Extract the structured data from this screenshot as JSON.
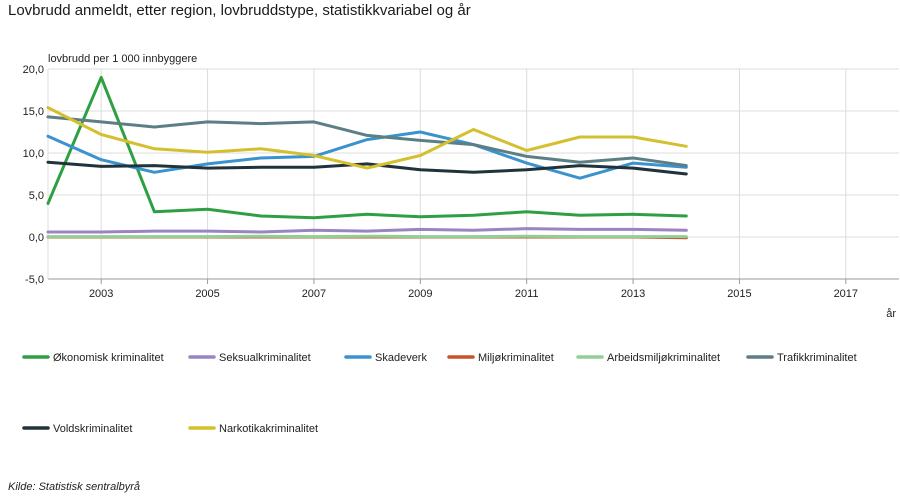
{
  "title": "Lovbrudd anmeldt, etter region, lovbruddstype, statistikkvariabel og år",
  "source": "Kilde:  Statistisk sentralbyrå",
  "chart_data": {
    "type": "line",
    "ylabel": "lovbrudd per 1 000 innbyggere",
    "xlabel": "år",
    "ylim": [
      -5,
      20
    ],
    "yticks": [
      "20,0",
      "15,0",
      "10,0",
      "5,0",
      "0,0",
      "-5,0"
    ],
    "ytick_values": [
      20,
      15,
      10,
      5,
      0,
      -5
    ],
    "xlim": [
      2002,
      2018
    ],
    "xticks": [
      2003,
      2005,
      2007,
      2009,
      2011,
      2013,
      2015,
      2017
    ],
    "grid": true,
    "legend_position": "bottom",
    "x": [
      2002,
      2003,
      2004,
      2005,
      2006,
      2007,
      2008,
      2009,
      2010,
      2011,
      2012,
      2013,
      2014
    ],
    "series": [
      {
        "name": "Økonomisk kriminalitet",
        "color": "#2ea043",
        "values": [
          4.0,
          19.0,
          3.0,
          3.3,
          2.5,
          2.3,
          2.7,
          2.4,
          2.6,
          3.0,
          2.6,
          2.7,
          2.5
        ]
      },
      {
        "name": "Seksualkriminalitet",
        "color": "#9b84c4",
        "values": [
          0.6,
          0.6,
          0.7,
          0.7,
          0.6,
          0.8,
          0.7,
          0.9,
          0.8,
          1.0,
          0.9,
          0.9,
          0.8
        ]
      },
      {
        "name": "Skadeverk",
        "color": "#3a93cf",
        "values": [
          12.0,
          9.2,
          7.7,
          8.7,
          9.4,
          9.6,
          11.6,
          12.5,
          11.0,
          8.8,
          7.0,
          8.8,
          8.3
        ]
      },
      {
        "name": "Miljøkriminalitet",
        "color": "#c8502a",
        "values": [
          0.0,
          0.0,
          0.0,
          0.0,
          0.0,
          0.0,
          0.0,
          0.0,
          0.0,
          0.0,
          0.0,
          0.0,
          -0.1
        ]
      },
      {
        "name": "Arbeidsmiljøkriminalitet",
        "color": "#93cf95",
        "values": [
          0.05,
          0.05,
          0.05,
          0.05,
          0.1,
          0.05,
          0.1,
          0.05,
          0.05,
          0.1,
          0.05,
          0.05,
          0.05
        ]
      },
      {
        "name": "Trafikkriminalitet",
        "color": "#5b7f84",
        "values": [
          14.3,
          13.7,
          13.1,
          13.7,
          13.5,
          13.7,
          12.1,
          11.5,
          11.0,
          9.6,
          8.9,
          9.4,
          8.5
        ]
      },
      {
        "name": "Voldskriminalitet",
        "color": "#20333a",
        "values": [
          8.9,
          8.4,
          8.5,
          8.2,
          8.3,
          8.3,
          8.7,
          8.0,
          7.7,
          8.0,
          8.5,
          8.2,
          7.5
        ]
      },
      {
        "name": "Narkotikakriminalitet",
        "color": "#d4c02f",
        "values": [
          15.4,
          12.2,
          10.5,
          10.1,
          10.5,
          9.7,
          8.2,
          9.7,
          12.8,
          10.3,
          11.9,
          11.9,
          10.8
        ]
      }
    ]
  }
}
